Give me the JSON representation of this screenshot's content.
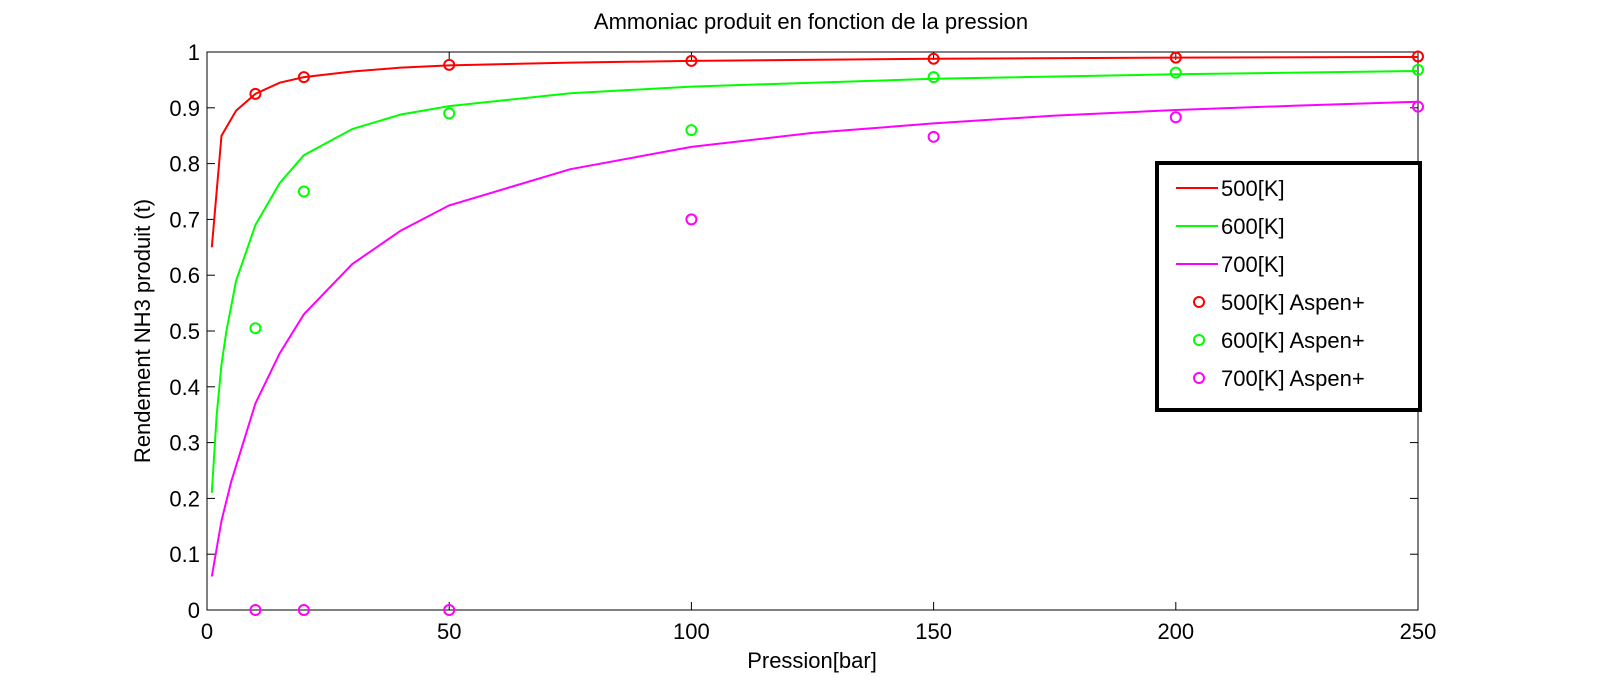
{
  "chart_data": {
    "type": "line",
    "title": "Ammoniac produit en fonction de la pression",
    "xlabel": "Pression[bar]",
    "ylabel": "Rendement NH3 produit (t)",
    "xlim": [
      0,
      250
    ],
    "ylim": [
      0,
      1
    ],
    "xticks": [
      0,
      50,
      100,
      150,
      200,
      250
    ],
    "yticks": [
      0,
      0.1,
      0.2,
      0.3,
      0.4,
      0.5,
      0.6,
      0.7,
      0.8,
      0.9,
      1
    ],
    "grid": false,
    "legend_position": "right",
    "series": [
      {
        "name": "500[K]",
        "kind": "line",
        "color": "#ff0000",
        "x": [
          1,
          3,
          6,
          10,
          15,
          20,
          30,
          40,
          50,
          75,
          100,
          150,
          200,
          250
        ],
        "y": [
          0.65,
          0.85,
          0.895,
          0.925,
          0.945,
          0.955,
          0.965,
          0.972,
          0.976,
          0.981,
          0.984,
          0.988,
          0.99,
          0.991
        ]
      },
      {
        "name": "600[K]",
        "kind": "line",
        "color": "#00ff00",
        "x": [
          1,
          2,
          3,
          4,
          6,
          8,
          10,
          15,
          20,
          30,
          40,
          50,
          75,
          100,
          150,
          200,
          250
        ],
        "y": [
          0.21,
          0.35,
          0.44,
          0.5,
          0.59,
          0.64,
          0.69,
          0.765,
          0.815,
          0.862,
          0.888,
          0.903,
          0.926,
          0.938,
          0.952,
          0.96,
          0.966
        ]
      },
      {
        "name": "700[K]",
        "kind": "line",
        "color": "#ff00ff",
        "x": [
          1,
          3,
          5,
          10,
          15,
          20,
          30,
          40,
          50,
          75,
          100,
          125,
          150,
          175,
          200,
          225,
          250
        ],
        "y": [
          0.06,
          0.16,
          0.23,
          0.37,
          0.46,
          0.53,
          0.62,
          0.68,
          0.725,
          0.79,
          0.83,
          0.855,
          0.872,
          0.886,
          0.896,
          0.904,
          0.911
        ]
      },
      {
        "name": "500[K] Aspen+",
        "kind": "scatter",
        "color": "#ff0000",
        "x": [
          10,
          20,
          50,
          100,
          150,
          200,
          250
        ],
        "y": [
          0.925,
          0.955,
          0.977,
          0.984,
          0.988,
          0.99,
          0.992
        ]
      },
      {
        "name": "600[K] Aspen+",
        "kind": "scatter",
        "color": "#00ff00",
        "x": [
          10,
          20,
          50,
          100,
          150,
          200,
          250
        ],
        "y": [
          0.505,
          0.75,
          0.89,
          0.86,
          0.955,
          0.963,
          0.968
        ]
      },
      {
        "name": "700[K] Aspen+",
        "kind": "scatter",
        "color": "#ff00ff",
        "x": [
          10,
          20,
          50,
          100,
          150,
          200,
          250
        ],
        "y": [
          0.0,
          0.0,
          0.0,
          0.7,
          0.848,
          0.883,
          0.902
        ]
      }
    ]
  }
}
